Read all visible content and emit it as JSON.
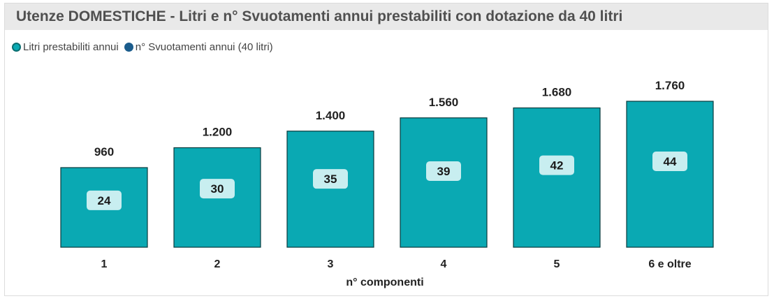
{
  "chart_data": {
    "type": "bar",
    "title": "Utenze DOMESTICHE - Litri e n° Svuotamenti annui prestabiliti con dotazione da 40 litri",
    "xlabel": "n° componenti",
    "ylabel": "",
    "categories": [
      "1",
      "2",
      "3",
      "4",
      "5",
      "6 e oltre"
    ],
    "series": [
      {
        "name": "Litri prestabiliti annui",
        "values": [
          960,
          1200,
          1400,
          1560,
          1680,
          1760
        ],
        "labels": [
          "960",
          "1.200",
          "1.400",
          "1.560",
          "1.680",
          "1.760"
        ],
        "color": "#0aa9b3"
      },
      {
        "name": "n° Svuotamenti annui (40 litri)",
        "values": [
          24,
          30,
          35,
          39,
          42,
          44
        ],
        "labels": [
          "24",
          "30",
          "35",
          "39",
          "42",
          "44"
        ],
        "color": "#1b5c8c"
      }
    ],
    "ylim": [
      0,
      1760
    ],
    "legend": "top-left",
    "grid": false
  },
  "colors": {
    "bar_fill": "#0aa9b3",
    "bar_stroke": "#0b3b3d",
    "inner_label_bg": "#c8eef0",
    "title_bg": "#e9e9e9"
  }
}
